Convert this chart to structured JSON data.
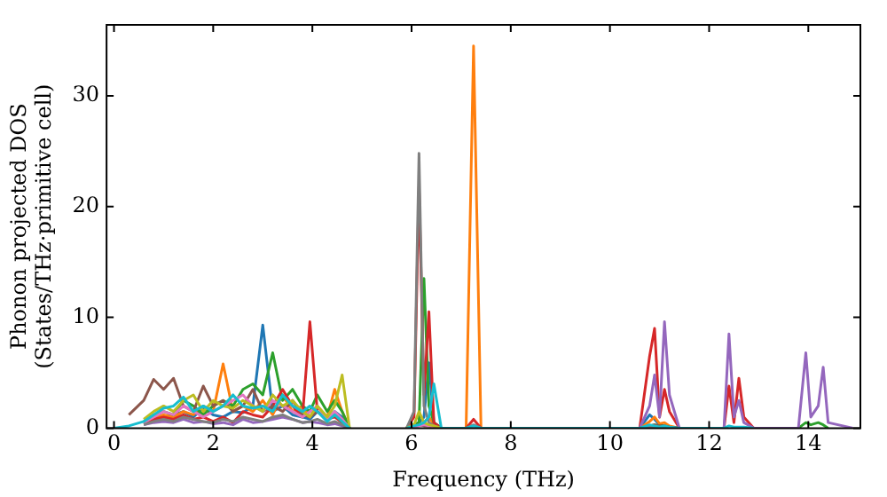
{
  "chart_data": {
    "type": "line",
    "xlabel": "Frequency (THz)",
    "ylabel": "Phonon projected DOS\n(States/THz·primitive cell)",
    "x": [
      0,
      0.3,
      0.6,
      0.8,
      1.0,
      1.2,
      1.4,
      1.6,
      1.8,
      2.0,
      2.2,
      2.4,
      2.6,
      2.8,
      3.0,
      3.2,
      3.4,
      3.6,
      3.8,
      3.95,
      4.1,
      4.3,
      4.45,
      4.6,
      4.75,
      5.0,
      5.9,
      6.05,
      6.15,
      6.25,
      6.35,
      6.45,
      6.6,
      7.1,
      7.25,
      7.4,
      10.6,
      10.8,
      10.9,
      11.0,
      11.1,
      11.2,
      11.4,
      12.3,
      12.4,
      12.5,
      12.6,
      12.7,
      12.9,
      13.8,
      13.95,
      14.05,
      14.2,
      14.3,
      14.4,
      14.9
    ],
    "series": [
      {
        "color": "#1f77b4",
        "values": [
          null,
          null,
          0.4,
          0.8,
          1.0,
          1.2,
          1.5,
          1.0,
          1.8,
          1.2,
          1.0,
          1.5,
          1.4,
          2.0,
          9.3,
          1.5,
          2.0,
          1.2,
          1.0,
          0.8,
          1.5,
          0.8,
          1.5,
          1.0,
          0,
          null,
          0,
          0.3,
          0.5,
          1.0,
          5.9,
          0.5,
          0,
          0,
          0.2,
          0,
          0,
          1.2,
          0.8,
          0.3,
          0.2,
          0.1,
          0,
          null,
          null,
          null,
          null,
          null,
          null,
          null,
          null,
          null,
          null,
          null,
          null,
          null
        ]
      },
      {
        "color": "#ff7f0e",
        "values": [
          null,
          null,
          0.5,
          1.0,
          1.2,
          1.0,
          1.5,
          1.2,
          2.0,
          1.5,
          5.8,
          1.5,
          2.0,
          1.5,
          2.5,
          1.2,
          3.0,
          1.5,
          2.0,
          1.0,
          2.0,
          1.0,
          3.5,
          1.5,
          0,
          null,
          0,
          0.2,
          0.3,
          0.5,
          1.0,
          0.3,
          0,
          0,
          34.5,
          0,
          0,
          0.6,
          1.0,
          0.4,
          0.5,
          0.2,
          0,
          null,
          null,
          null,
          null,
          null,
          null,
          null,
          null,
          null,
          null,
          null,
          null,
          null
        ]
      },
      {
        "color": "#2ca02c",
        "values": [
          null,
          null,
          0.6,
          1.2,
          1.5,
          1.2,
          2.5,
          2.0,
          1.2,
          2.0,
          2.5,
          2.0,
          3.5,
          4.0,
          3.0,
          6.8,
          2.5,
          3.5,
          2.0,
          1.5,
          3.0,
          1.5,
          2.5,
          1.5,
          0,
          null,
          0,
          0.3,
          0.5,
          13.5,
          2.0,
          0.5,
          0,
          0,
          0.2,
          0,
          0,
          0.2,
          0.3,
          0.2,
          0.2,
          0.1,
          0,
          null,
          null,
          null,
          null,
          null,
          0,
          0,
          0.5,
          0.3,
          0.5,
          0.3,
          0,
          null
        ]
      },
      {
        "color": "#d62728",
        "values": [
          null,
          null,
          0.5,
          0.8,
          1.0,
          0.8,
          1.2,
          0.8,
          1.0,
          0.6,
          1.0,
          0.5,
          1.5,
          1.2,
          1.0,
          2.0,
          3.5,
          2.0,
          1.0,
          9.6,
          1.5,
          0.8,
          1.0,
          0.5,
          0,
          null,
          0,
          1.0,
          21.8,
          3.0,
          10.5,
          0.5,
          0,
          0,
          0.8,
          0,
          0,
          6.5,
          9.0,
          1.0,
          3.5,
          1.5,
          0,
          0,
          3.8,
          0.5,
          4.5,
          1.0,
          0,
          null,
          null,
          null,
          null,
          null,
          null,
          null
        ]
      },
      {
        "color": "#9467bd",
        "values": [
          null,
          null,
          0.3,
          0.5,
          0.6,
          0.5,
          0.8,
          0.5,
          0.6,
          0.4,
          0.5,
          0.3,
          0.8,
          0.5,
          0.6,
          0.8,
          1.0,
          0.8,
          0.5,
          0.6,
          0.5,
          0.3,
          0.4,
          0.2,
          0,
          null,
          0,
          0.1,
          0.2,
          0.3,
          0.2,
          0.1,
          0,
          0,
          0.1,
          0,
          0,
          2.0,
          4.8,
          1.0,
          9.6,
          3.0,
          0,
          0,
          8.5,
          1.0,
          2.5,
          0.5,
          0,
          0,
          6.8,
          1.0,
          2.0,
          5.5,
          0.5,
          0
        ]
      },
      {
        "color": "#8c564b",
        "values": [
          null,
          1.2,
          2.5,
          4.4,
          3.5,
          4.5,
          2.0,
          1.5,
          3.8,
          2.0,
          2.5,
          1.5,
          2.0,
          3.5,
          1.5,
          2.0,
          1.5,
          2.5,
          1.2,
          1.0,
          1.5,
          0.8,
          1.2,
          0.5,
          0,
          null,
          0,
          0.2,
          0.3,
          0.2,
          0.2,
          0.1,
          0,
          0,
          0.2,
          0,
          0,
          0.2,
          0.3,
          0.2,
          0.2,
          0.1,
          0,
          null,
          null,
          null,
          null,
          null,
          null,
          null,
          null,
          null,
          null,
          null,
          null,
          null
        ]
      },
      {
        "color": "#e377c2",
        "values": [
          null,
          null,
          0.5,
          1.0,
          1.5,
          1.2,
          2.0,
          1.5,
          1.0,
          1.5,
          2.0,
          2.5,
          3.0,
          2.0,
          1.5,
          2.5,
          2.0,
          1.5,
          1.0,
          1.5,
          2.0,
          0.8,
          1.5,
          0.8,
          0,
          null,
          0,
          0.1,
          0.2,
          0.3,
          0.2,
          0.1,
          0,
          0,
          0.1,
          0,
          null,
          null,
          null,
          null,
          null,
          null,
          null,
          null,
          null,
          null,
          null,
          null,
          null,
          null,
          null,
          null,
          null,
          null,
          null,
          null
        ]
      },
      {
        "color": "#7f7f7f",
        "values": [
          null,
          null,
          0.3,
          0.6,
          0.8,
          0.6,
          1.0,
          0.8,
          0.6,
          0.5,
          0.8,
          0.6,
          1.0,
          0.8,
          0.6,
          1.0,
          1.2,
          0.8,
          0.5,
          0.6,
          0.8,
          0.4,
          0.6,
          0.3,
          0,
          null,
          0,
          1.5,
          24.8,
          2.0,
          0.5,
          0.2,
          0,
          0,
          0.3,
          0,
          0,
          0.1,
          0.1,
          0.1,
          0.1,
          0,
          0,
          null,
          null,
          null,
          null,
          null,
          null,
          null,
          null,
          null,
          null,
          null,
          null,
          null
        ]
      },
      {
        "color": "#bcbd22",
        "values": [
          null,
          null,
          0.8,
          1.5,
          2.0,
          1.5,
          2.5,
          3.0,
          1.5,
          2.5,
          2.0,
          1.8,
          2.5,
          2.0,
          1.5,
          3.0,
          2.0,
          2.5,
          1.5,
          1.0,
          2.0,
          1.0,
          2.0,
          4.8,
          0,
          null,
          0,
          0.3,
          1.5,
          0.5,
          0.3,
          0.2,
          0,
          null,
          null,
          null,
          null,
          null,
          null,
          null,
          null,
          null,
          null,
          null,
          null,
          null,
          null,
          null,
          null,
          null,
          null,
          null,
          null,
          null,
          null,
          null
        ]
      },
      {
        "color": "#17becf",
        "values": [
          0,
          0.2,
          0.6,
          1.2,
          1.8,
          2.0,
          2.8,
          1.5,
          2.0,
          1.5,
          2.0,
          3.0,
          2.0,
          1.8,
          2.0,
          1.5,
          3.0,
          2.0,
          1.5,
          2.0,
          1.5,
          0.6,
          1.2,
          0.6,
          0,
          null,
          0,
          0.2,
          0.3,
          0.5,
          1.0,
          4.0,
          0,
          0,
          0.2,
          0,
          0,
          0.3,
          0.2,
          0.1,
          0.2,
          0.1,
          0,
          0,
          0.2,
          0.1,
          0.1,
          0.1,
          0,
          null,
          null,
          null,
          null,
          null,
          null,
          null
        ]
      }
    ],
    "xlim": [
      -0.15,
      15.05
    ],
    "ylim": [
      0,
      36.4
    ],
    "xticks": [
      0,
      2,
      4,
      6,
      8,
      10,
      12,
      14
    ],
    "yticks": [
      0,
      10,
      20,
      30
    ],
    "grid": false,
    "legend": false,
    "marker": "none",
    "line_style": "solid"
  }
}
